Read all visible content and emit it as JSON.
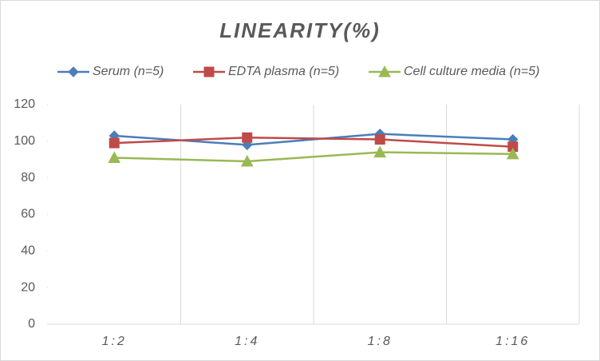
{
  "chart_data": {
    "type": "line",
    "title": "LINEARITY(%)",
    "categories": [
      "1:2",
      "1:4",
      "1:8",
      "1:16"
    ],
    "series": [
      {
        "name": "Serum (n=5)",
        "color": "#4a7ebb",
        "marker": "diamond",
        "values": [
          103,
          98,
          104,
          101
        ]
      },
      {
        "name": "EDTA plasma (n=5)",
        "color": "#be4b48",
        "marker": "square",
        "values": [
          99,
          102,
          101,
          97
        ]
      },
      {
        "name": "Cell culture media (n=5)",
        "color": "#98b954",
        "marker": "triangle",
        "values": [
          91,
          89,
          94,
          93
        ]
      }
    ],
    "ylim": [
      0,
      120
    ],
    "yticks": [
      0,
      20,
      40,
      60,
      80,
      100,
      120
    ],
    "legend": "top",
    "grid": "vertical"
  }
}
